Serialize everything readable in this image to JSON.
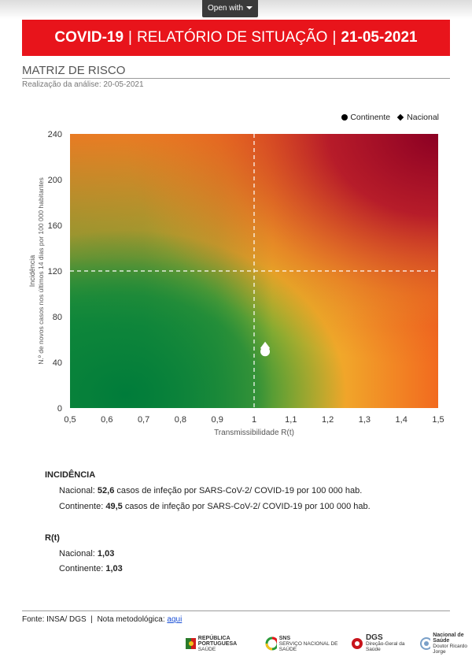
{
  "viewer": {
    "open_with_label": "Open with"
  },
  "header": {
    "topic": "COVID-19",
    "title": "RELATÓRIO DE SITUAÇÃO",
    "date": "21-05-2021",
    "separator": "|",
    "banner_color": "#e8141b"
  },
  "section": {
    "title": "MATRIZ DE RISCO",
    "subtitle": "Realização da análise: 20-05-2021"
  },
  "chart_data": {
    "type": "scatter",
    "title": "",
    "xlabel": "Transmissibilidade R(t)",
    "ylabel_line1": "Incidência",
    "ylabel_line2": "N.º de novos casos nos últimos 14 dias por 100 000 habitantes",
    "xlim": [
      0.5,
      1.5
    ],
    "ylim": [
      0,
      240
    ],
    "x_ticks": [
      "0,5",
      "0,6",
      "0,7",
      "0,8",
      "0,9",
      "1",
      "1,1",
      "1,2",
      "1,3",
      "1,4",
      "1,5"
    ],
    "y_ticks": [
      "0",
      "40",
      "80",
      "120",
      "160",
      "200",
      "240"
    ],
    "thresholds": {
      "x": 1,
      "y": 120
    },
    "grid": false,
    "legend_position": "top-right",
    "background": "risk-gradient green-yellow-orange-red",
    "series": [
      {
        "name": "Continente",
        "marker": "circle",
        "x": [
          1.03
        ],
        "y": [
          49.5
        ]
      },
      {
        "name": "Nacional",
        "marker": "diamond",
        "x": [
          1.03
        ],
        "y": [
          52.6
        ]
      }
    ]
  },
  "incidencia": {
    "heading": "INCIDÊNCIA",
    "nacional": {
      "label": "Nacional:",
      "value": "52,6",
      "text": "casos de infeção por SARS-CoV-2/ COVID-19 por 100 000 hab."
    },
    "continente": {
      "label": "Continente:",
      "value": "49,5",
      "text": "casos de infeção por SARS-CoV-2/ COVID-19 por 100 000 hab."
    }
  },
  "rt": {
    "heading": "R(t)",
    "nacional": {
      "label": "Nacional:",
      "value": "1,03"
    },
    "continente": {
      "label": "Continente:",
      "value": "1,03"
    }
  },
  "footer": {
    "source": "Fonte: INSA/ DGS",
    "divider": "|",
    "note_label": "Nota metodológica:",
    "note_link": "aqui",
    "logos": [
      {
        "name": "REPÚBLICA PORTUGUESA",
        "sub": "SAÚDE"
      },
      {
        "name": "SNS",
        "sub": "SERVIÇO NACIONAL DE SAÚDE"
      },
      {
        "name": "DGS",
        "sub": "Direção-Geral da Saúde"
      },
      {
        "name": "Nacional de Saúde",
        "sub": "Doutor Ricardo Jorge"
      }
    ]
  }
}
